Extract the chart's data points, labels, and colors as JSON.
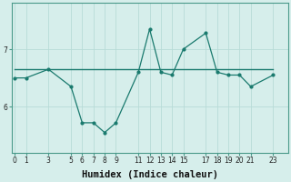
{
  "xlabel": "Humidex (Indice chaleur)",
  "bg_color": "#d6eeeb",
  "line_color": "#1a7a6e",
  "grid_color": "#b8dbd7",
  "x": [
    0,
    1,
    3,
    5,
    6,
    7,
    8,
    9,
    11,
    12,
    13,
    14,
    15,
    17,
    18,
    19,
    20,
    21,
    23
  ],
  "y": [
    6.5,
    6.5,
    6.65,
    6.35,
    5.72,
    5.72,
    5.55,
    5.72,
    6.6,
    7.35,
    6.6,
    6.55,
    7.0,
    7.28,
    6.6,
    6.55,
    6.55,
    6.35,
    6.55
  ],
  "y_flat": [
    6.65,
    6.65,
    6.65,
    6.65,
    6.65,
    6.65,
    6.65,
    6.65,
    6.65,
    6.65,
    6.65,
    6.65,
    6.65,
    6.65,
    6.65,
    6.65,
    6.65,
    6.65,
    6.65
  ],
  "yticks": [
    6,
    7
  ],
  "ylim": [
    5.2,
    7.8
  ],
  "xlim": [
    -0.3,
    24.3
  ],
  "xticks": [
    0,
    1,
    3,
    5,
    6,
    7,
    8,
    9,
    11,
    12,
    13,
    14,
    15,
    17,
    18,
    19,
    20,
    21,
    23
  ],
  "xtick_labels": [
    "0",
    "1",
    "3",
    "5",
    "6",
    "7",
    "8",
    "9",
    "11",
    "12",
    "13",
    "14",
    "15",
    "17",
    "18",
    "19",
    "20",
    "21",
    "23"
  ],
  "label_fontsize": 7.5,
  "tick_fontsize": 5.5
}
